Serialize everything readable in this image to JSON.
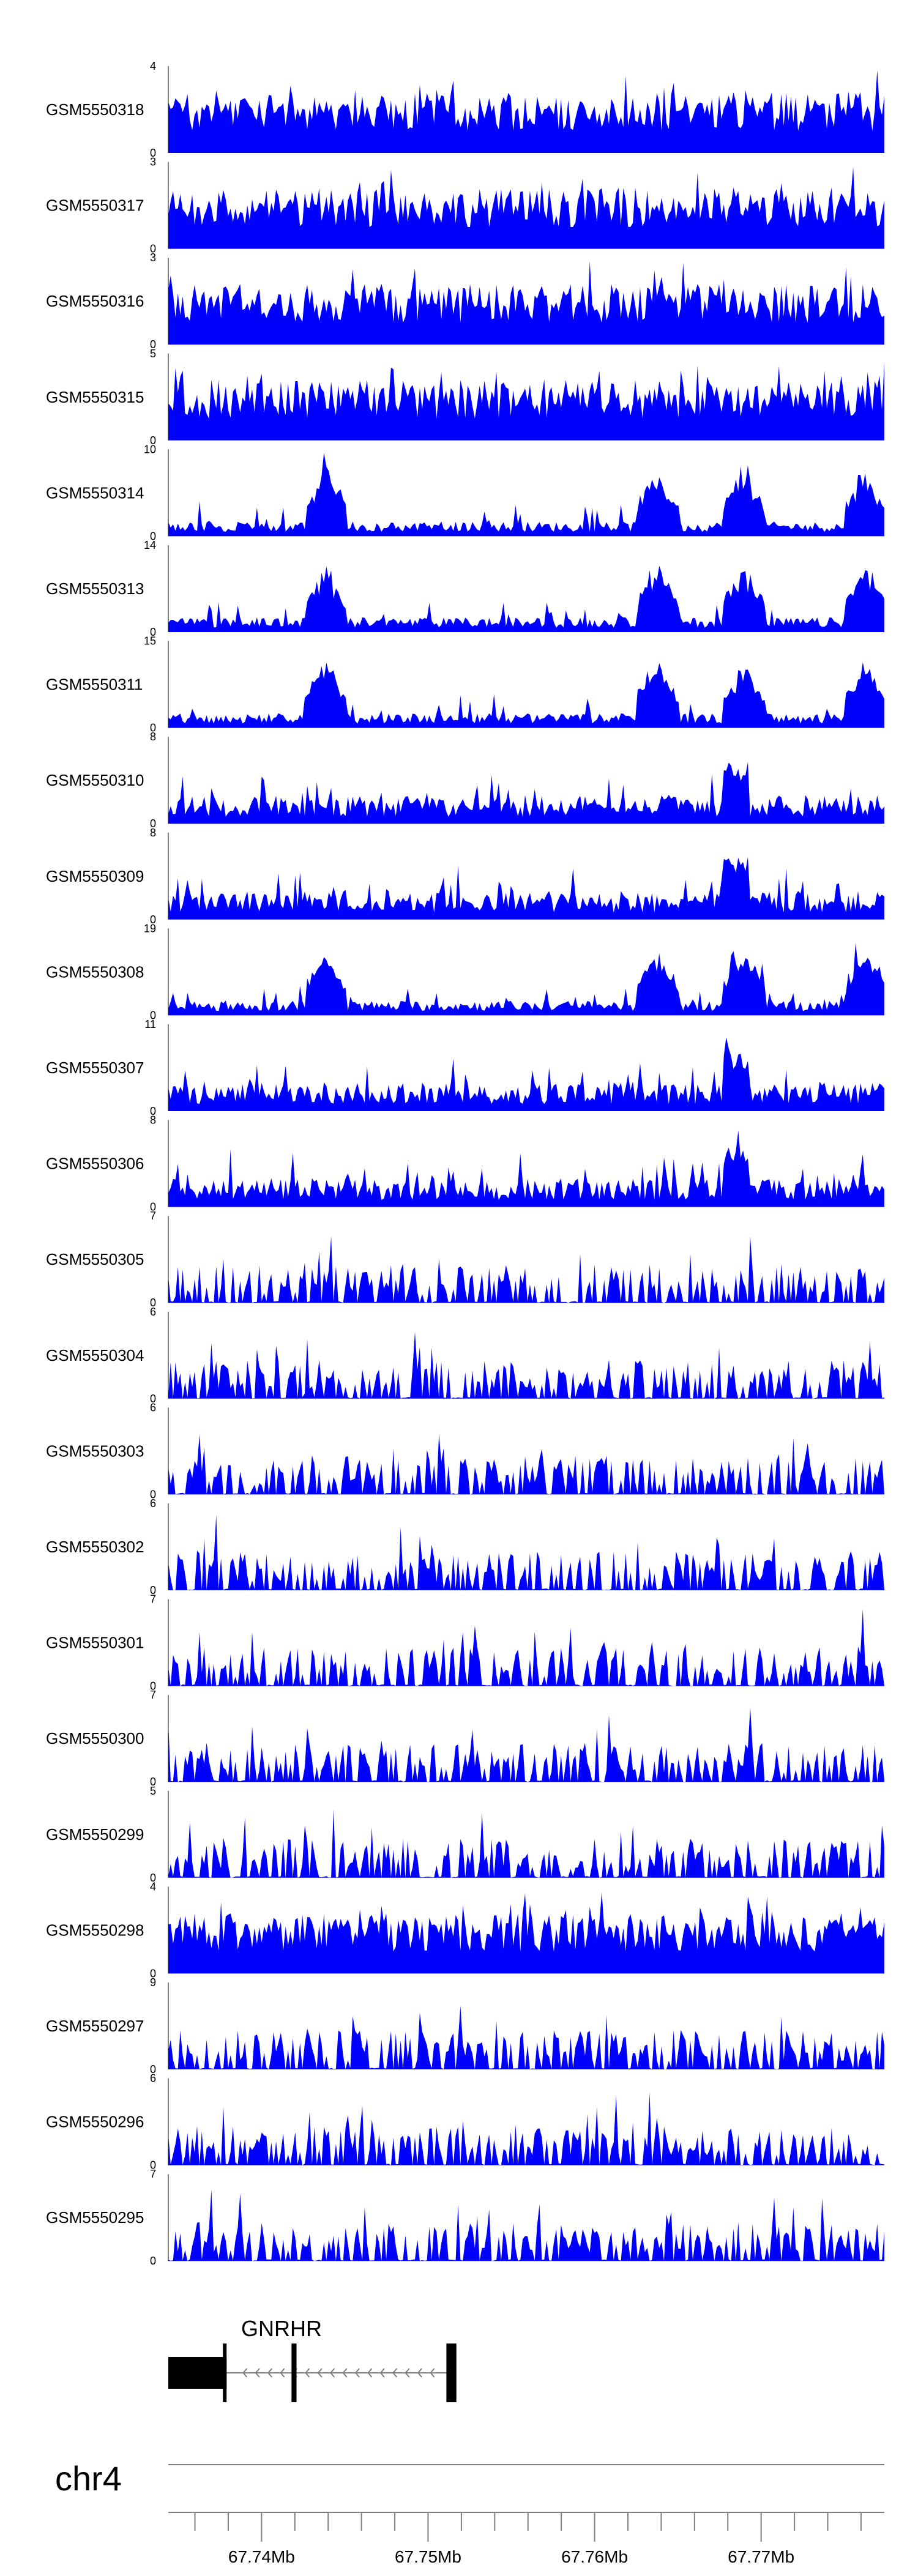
{
  "chart_data": {
    "type": "area",
    "description_visible": false,
    "genome_region": {
      "chrom": "chr4",
      "x_range": [
        67.7344,
        67.7774
      ]
    },
    "x_axis": {
      "ticks": [
        67.74,
        67.75,
        67.76,
        67.77
      ],
      "tick_labels": [
        "67.74Mb",
        "67.75Mb",
        "67.76Mb",
        "67.77Mb"
      ],
      "minor_tick_step": 0.002
    },
    "series_color": "#0000ff",
    "tracks": [
      {
        "name": "GSM5550318",
        "ymax": "4",
        "ymax_value": 4,
        "seed": 318,
        "profile": "dense"
      },
      {
        "name": "GSM5550317",
        "ymax": "3",
        "ymax_value": 3,
        "seed": 317,
        "profile": "dense"
      },
      {
        "name": "GSM5550316",
        "ymax": "3",
        "ymax_value": 3,
        "seed": 316,
        "profile": "dense"
      },
      {
        "name": "GSM5550315",
        "ymax": "5",
        "ymax_value": 5,
        "seed": 315,
        "profile": "dense"
      },
      {
        "name": "GSM5550314",
        "ymax": "10",
        "ymax_value": 10,
        "seed": 314,
        "profile": "peaky"
      },
      {
        "name": "GSM5550313",
        "ymax": "14",
        "ymax_value": 14,
        "seed": 313,
        "profile": "peaky"
      },
      {
        "name": "GSM5550311",
        "ymax": "15",
        "ymax_value": 15,
        "seed": 311,
        "profile": "peaky"
      },
      {
        "name": "GSM5550310",
        "ymax": "8",
        "ymax_value": 8,
        "seed": 310,
        "profile": "medium"
      },
      {
        "name": "GSM5550309",
        "ymax": "8",
        "ymax_value": 8,
        "seed": 309,
        "profile": "medium"
      },
      {
        "name": "GSM5550308",
        "ymax": "19",
        "ymax_value": 19,
        "seed": 308,
        "profile": "peaky"
      },
      {
        "name": "GSM5550307",
        "ymax": "11",
        "ymax_value": 11,
        "seed": 307,
        "profile": "medium"
      },
      {
        "name": "GSM5550306",
        "ymax": "8",
        "ymax_value": 8,
        "seed": 306,
        "profile": "medium"
      },
      {
        "name": "GSM5550305",
        "ymax": "7",
        "ymax_value": 7,
        "seed": 305,
        "profile": "spiky"
      },
      {
        "name": "GSM5550304",
        "ymax": "6",
        "ymax_value": 6,
        "seed": 304,
        "profile": "spiky"
      },
      {
        "name": "GSM5550303",
        "ymax": "6",
        "ymax_value": 6,
        "seed": 303,
        "profile": "spiky"
      },
      {
        "name": "GSM5550302",
        "ymax": "6",
        "ymax_value": 6,
        "seed": 302,
        "profile": "spiky"
      },
      {
        "name": "GSM5550301",
        "ymax": "7",
        "ymax_value": 7,
        "seed": 301,
        "profile": "spiky"
      },
      {
        "name": "GSM5550300",
        "ymax": "7",
        "ymax_value": 7,
        "seed": 300,
        "profile": "spiky"
      },
      {
        "name": "GSM5550299",
        "ymax": "5",
        "ymax_value": 5,
        "seed": 299,
        "profile": "spiky"
      },
      {
        "name": "GSM5550298",
        "ymax": "4",
        "ymax_value": 4,
        "seed": 298,
        "profile": "dense"
      },
      {
        "name": "GSM5550297",
        "ymax": "9",
        "ymax_value": 9,
        "seed": 297,
        "profile": "spiky"
      },
      {
        "name": "GSM5550296",
        "ymax": "6",
        "ymax_value": 6,
        "seed": 296,
        "profile": "spiky"
      },
      {
        "name": "GSM5550295",
        "ymax": "7",
        "ymax_value": 7,
        "seed": 295,
        "profile": "spiky"
      }
    ],
    "gene": {
      "name": "GNRHR",
      "strand": "-",
      "start": 67.7344,
      "end": 67.7517,
      "exons": [
        {
          "start": 67.7344,
          "end": 67.7379
        },
        {
          "start": 67.7418,
          "end": 67.7421
        },
        {
          "start": 67.7511,
          "end": 67.7517
        }
      ]
    },
    "chrom_label": "chr4"
  }
}
